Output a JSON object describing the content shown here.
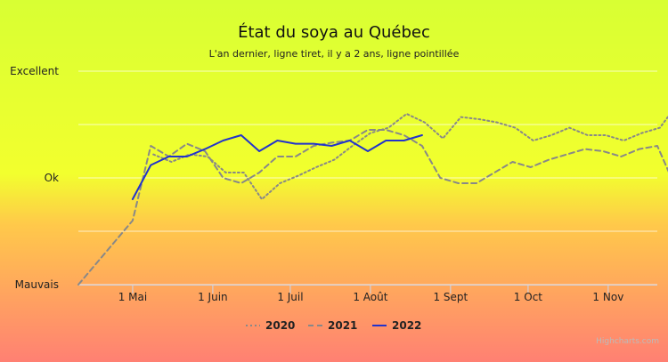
{
  "chart_data": {
    "type": "line",
    "title": "État du soya au Québec",
    "subtitle": "L'an dernier, ligne tiret, il y a 2 ans, ligne pointillée",
    "y_categories": [
      "Mauvais",
      "Ok",
      "Excellent"
    ],
    "ylim": [
      0,
      2
    ],
    "x_ticks": [
      "1 Mai",
      "1 Juin",
      "1 Juil",
      "1 Août",
      "1 Sept",
      "1 Oct",
      "1 Nov"
    ],
    "x_tick_dates": [
      "05-01",
      "06-01",
      "07-01",
      "08-01",
      "09-01",
      "10-01",
      "11-01"
    ],
    "xlim": [
      "04-10",
      "11-20"
    ],
    "grid": true,
    "legend_position": "bottom",
    "series": [
      {
        "name": "2020",
        "style": "dotted",
        "color": "#888888",
        "points": [
          [
            "05-09",
            1.22
          ],
          [
            "05-16",
            1.15
          ],
          [
            "05-23",
            1.22
          ],
          [
            "05-30",
            1.2
          ],
          [
            "06-06",
            1.05
          ],
          [
            "06-13",
            1.05
          ],
          [
            "06-20",
            0.8
          ],
          [
            "06-27",
            0.95
          ],
          [
            "07-04",
            1.02
          ],
          [
            "07-11",
            1.1
          ],
          [
            "07-18",
            1.17
          ],
          [
            "07-25",
            1.3
          ],
          [
            "08-01",
            1.42
          ],
          [
            "08-08",
            1.47
          ],
          [
            "08-15",
            1.6
          ],
          [
            "08-22",
            1.52
          ],
          [
            "08-29",
            1.37
          ],
          [
            "09-05",
            1.57
          ],
          [
            "09-12",
            1.55
          ],
          [
            "09-19",
            1.52
          ],
          [
            "09-26",
            1.47
          ],
          [
            "10-03",
            1.35
          ],
          [
            "10-10",
            1.4
          ],
          [
            "10-17",
            1.47
          ],
          [
            "10-24",
            1.4
          ],
          [
            "10-31",
            1.4
          ],
          [
            "11-07",
            1.35
          ],
          [
            "11-14",
            1.42
          ],
          [
            "11-21",
            1.47
          ],
          [
            "11-25",
            1.6
          ]
        ]
      },
      {
        "name": "2021",
        "style": "dashed",
        "color": "#888888",
        "points": [
          [
            "04-10",
            0.0
          ],
          [
            "04-17",
            0.2
          ],
          [
            "04-24",
            0.4
          ],
          [
            "05-01",
            0.6
          ],
          [
            "05-08",
            1.3
          ],
          [
            "05-15",
            1.2
          ],
          [
            "05-22",
            1.32
          ],
          [
            "05-29",
            1.25
          ],
          [
            "06-05",
            1.0
          ],
          [
            "06-12",
            0.95
          ],
          [
            "06-19",
            1.05
          ],
          [
            "06-26",
            1.2
          ],
          [
            "07-03",
            1.2
          ],
          [
            "07-10",
            1.3
          ],
          [
            "07-17",
            1.33
          ],
          [
            "07-24",
            1.35
          ],
          [
            "07-31",
            1.45
          ],
          [
            "08-07",
            1.45
          ],
          [
            "08-14",
            1.4
          ],
          [
            "08-21",
            1.3
          ],
          [
            "08-28",
            1.0
          ],
          [
            "09-04",
            0.95
          ],
          [
            "09-11",
            0.95
          ],
          [
            "09-18",
            1.05
          ],
          [
            "09-25",
            1.15
          ],
          [
            "10-02",
            1.1
          ],
          [
            "10-09",
            1.17
          ],
          [
            "10-16",
            1.22
          ],
          [
            "10-23",
            1.27
          ],
          [
            "10-30",
            1.25
          ],
          [
            "11-06",
            1.2
          ],
          [
            "11-13",
            1.27
          ],
          [
            "11-20",
            1.3
          ],
          [
            "11-26",
            0.97
          ]
        ]
      },
      {
        "name": "2022",
        "style": "solid",
        "color": "#2233cc",
        "points": [
          [
            "05-01",
            0.8
          ],
          [
            "05-08",
            1.12
          ],
          [
            "05-15",
            1.2
          ],
          [
            "05-22",
            1.2
          ],
          [
            "05-29",
            1.27
          ],
          [
            "06-05",
            1.35
          ],
          [
            "06-12",
            1.4
          ],
          [
            "06-19",
            1.25
          ],
          [
            "06-26",
            1.35
          ],
          [
            "07-03",
            1.32
          ],
          [
            "07-10",
            1.32
          ],
          [
            "07-17",
            1.3
          ],
          [
            "07-24",
            1.35
          ],
          [
            "07-31",
            1.25
          ],
          [
            "08-07",
            1.35
          ],
          [
            "08-14",
            1.35
          ],
          [
            "08-21",
            1.4
          ]
        ]
      }
    ]
  },
  "credit": "Highcharts.com"
}
